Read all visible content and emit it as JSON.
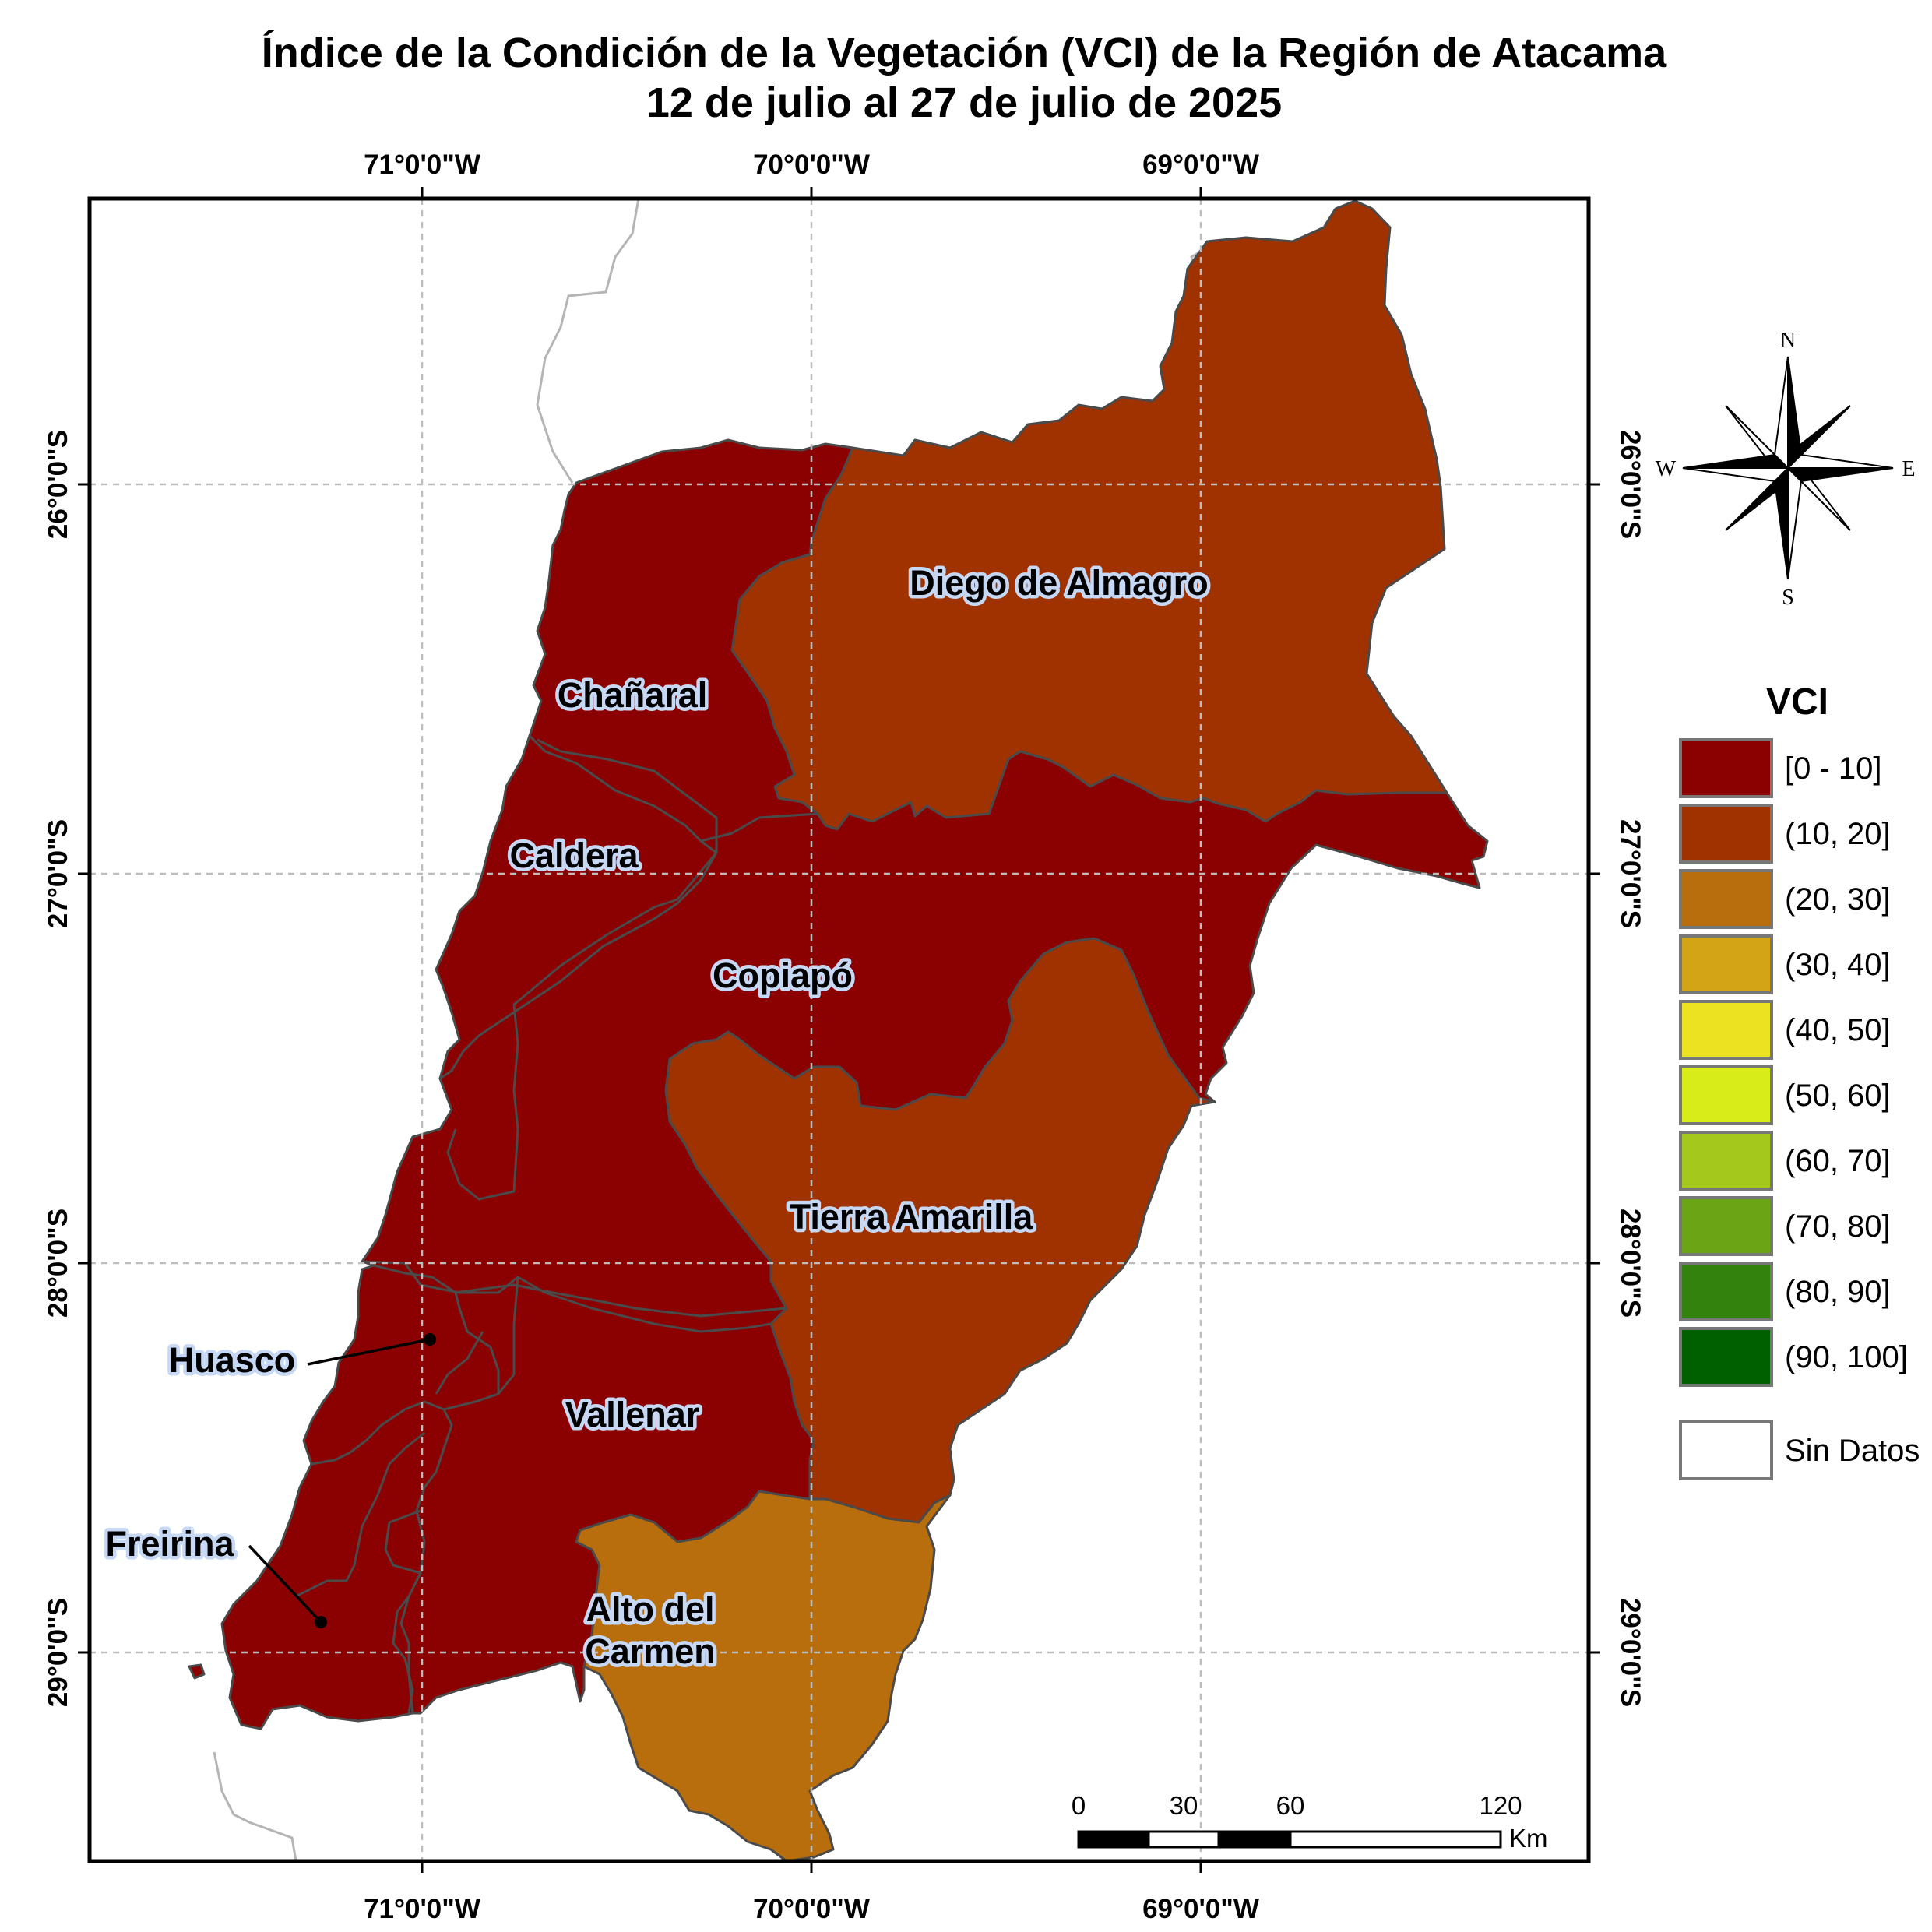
{
  "title": {
    "line1": "Índice de la Condición de la Vegetación (VCI) de la Región de Atacama",
    "line2": "12 de julio al 27 de julio de 2025"
  },
  "graticule": {
    "longitudes": [
      "71°0'0\"W",
      "70°0'0\"W",
      "69°0'0\"W"
    ],
    "latitudes": [
      "26°0'0\"S",
      "27°0'0\"S",
      "28°0'0\"S",
      "29°0'0\"S"
    ]
  },
  "comunas": [
    {
      "name": "Diego de Almagro",
      "vci_class": "(10, 20]",
      "color": "#a03200"
    },
    {
      "name": "Chañaral",
      "vci_class": "[0 - 10]",
      "color": "#8b0000"
    },
    {
      "name": "Caldera",
      "vci_class": "[0 - 10]",
      "color": "#8b0000"
    },
    {
      "name": "Copiapó",
      "vci_class": "[0 - 10]",
      "color": "#8b0000"
    },
    {
      "name": "Tierra Amarilla",
      "vci_class": "(10, 20]",
      "color": "#a03200"
    },
    {
      "name": "Huasco",
      "vci_class": "[0 - 10]",
      "color": "#8b0000"
    },
    {
      "name": "Vallenar",
      "vci_class": "[0 - 10]",
      "color": "#8b0000"
    },
    {
      "name": "Freirina",
      "vci_class": "[0 - 10]",
      "color": "#8b0000"
    },
    {
      "name": "Alto del Carmen",
      "vci_class": "(20, 30]",
      "color": "#b86e0c"
    }
  ],
  "labels": {
    "diego": "Diego de Almagro",
    "chanaral": "Chañaral",
    "caldera": "Caldera",
    "copiapo": "Copiapó",
    "tierra": "Tierra Amarilla",
    "huasco": "Huasco",
    "vallenar": "Vallenar",
    "freirina": "Freirina",
    "alto1": "Alto del",
    "alto2": "Carmen"
  },
  "compass": {
    "n": "N",
    "s": "S",
    "e": "E",
    "w": "W"
  },
  "legend": {
    "title": "VCI",
    "classes": [
      {
        "label": "[0 - 10]",
        "color": "#8b0000"
      },
      {
        "label": "(10, 20]",
        "color": "#a03200"
      },
      {
        "label": "(20, 30]",
        "color": "#b86e0c"
      },
      {
        "label": "(30, 40]",
        "color": "#d4a417"
      },
      {
        "label": "(40, 50]",
        "color": "#ede221"
      },
      {
        "label": "(50, 60]",
        "color": "#d8ec1a"
      },
      {
        "label": "(60, 70]",
        "color": "#a4c81c"
      },
      {
        "label": "(70, 80]",
        "color": "#6ba515"
      },
      {
        "label": "(80, 90]",
        "color": "#33820d"
      },
      {
        "label": "(90, 100]",
        "color": "#006000"
      }
    ],
    "no_data": {
      "label": "Sin Datos",
      "color": "#ffffff"
    }
  },
  "scale_bar": {
    "ticks": [
      "0",
      "30",
      "60",
      "120"
    ],
    "unit": "Km"
  }
}
